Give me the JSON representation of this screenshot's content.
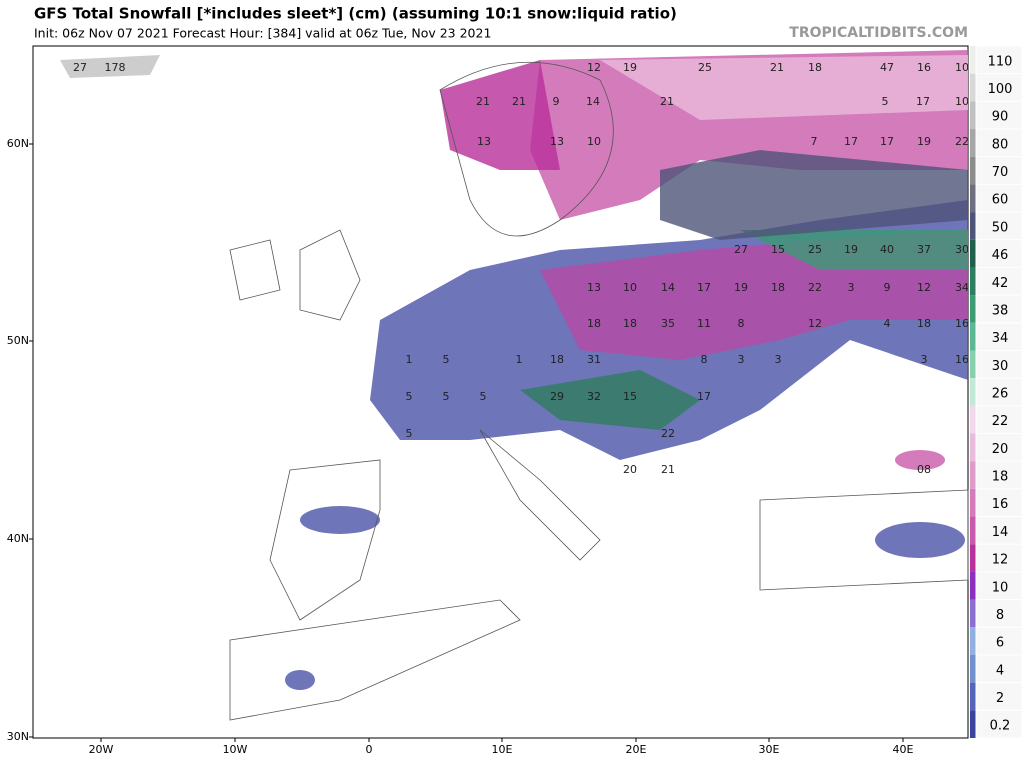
{
  "header": {
    "title": "GFS Total Snowfall [*includes sleet*] (cm) (assuming 10:1 snow:liquid ratio)",
    "subtitle": "Init: 06z Nov 07 2021   Forecast Hour: [384]   valid at 06z Tue, Nov 23 2021",
    "watermark": "TROPICALTIDBITS.COM"
  },
  "map": {
    "lat_labels": [
      "60N",
      "50N",
      "40N",
      "30N"
    ],
    "lon_labels": [
      "20W",
      "10W",
      "0",
      "10E",
      "20E",
      "30E",
      "40E"
    ],
    "labels": [
      27,
      178,
      12,
      19,
      25,
      21,
      18,
      47,
      16,
      10,
      21,
      21,
      9,
      14,
      21,
      5,
      17,
      10,
      13,
      13,
      10,
      7,
      17,
      17,
      19,
      22,
      27,
      15,
      25,
      19,
      40,
      37,
      30,
      13,
      10,
      14,
      17,
      19,
      18,
      22,
      3,
      9,
      12,
      34,
      18,
      18,
      35,
      11,
      8,
      12,
      4,
      18,
      16,
      1,
      5,
      1,
      18,
      31,
      8,
      3,
      3,
      3,
      16,
      5,
      5,
      5,
      29,
      32,
      15,
      17,
      5,
      22,
      20,
      21,
      "08"
    ]
  },
  "colorbar": {
    "levels": [
      110,
      100,
      90,
      80,
      70,
      60,
      50,
      46,
      42,
      38,
      34,
      30,
      26,
      22,
      20,
      18,
      16,
      14,
      12,
      10,
      8,
      6,
      4,
      2,
      0.2
    ],
    "colors": [
      "#eeeeea",
      "#d8d8d8",
      "#c0c0c0",
      "#a6a6a6",
      "#8c8c8c",
      "#6d6f80",
      "#4e5478",
      "#1f5f4c",
      "#2e7d5e",
      "#3c9a74",
      "#5bb892",
      "#86d0b0",
      "#c2e8d8",
      "#f2d8ea",
      "#eabcda",
      "#df9ccb",
      "#d47cbb",
      "#c95aab",
      "#b8309a",
      "#8c2ec0",
      "#8a6ed0",
      "#8fb0e0",
      "#6f92cf",
      "#5464b8",
      "#3a44a0"
    ]
  }
}
